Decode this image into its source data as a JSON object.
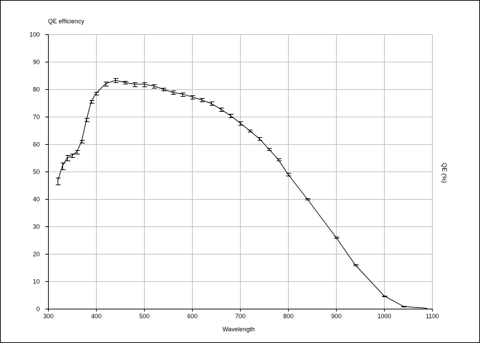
{
  "chart_data": {
    "type": "line",
    "title": "QE efficiency",
    "xlabel": "Wavelength",
    "ylabel": "QE (%)",
    "xlim": [
      300,
      1100
    ],
    "ylim": [
      0,
      100
    ],
    "grid": true,
    "x_ticks": [
      "300",
      "400",
      "500",
      "600",
      "700",
      "800",
      "900",
      "1000",
      "1100"
    ],
    "y_ticks": [
      "0",
      "10",
      "20",
      "30",
      "40",
      "50",
      "60",
      "70",
      "80",
      "90",
      "100"
    ],
    "series": [
      {
        "x": [
          320,
          330,
          340,
          350,
          360,
          370,
          380,
          390,
          400,
          420,
          440,
          460,
          480,
          500,
          520,
          540,
          560,
          580,
          600,
          620,
          640,
          660,
          680,
          700,
          720,
          740,
          760,
          780,
          800,
          840,
          900,
          940,
          1000,
          1040,
          1060,
          1080,
          1090
        ],
        "y": [
          46.5,
          52,
          55,
          55.8,
          57.2,
          61,
          68.8,
          75.5,
          78.5,
          82,
          83.2,
          82.5,
          81.8,
          81.8,
          81.2,
          80,
          78.8,
          78.2,
          77.2,
          76.1,
          74.8,
          72.7,
          70.4,
          67.7,
          64.9,
          62,
          58.2,
          54.3,
          49,
          40,
          26,
          16,
          4.7,
          0.9,
          0.5,
          0.3,
          0.1
        ],
        "err": [
          1.3,
          1.3,
          1.1,
          0.6,
          0.6,
          0.6,
          0.6,
          0.6,
          0.6,
          0.8,
          0.8,
          0.6,
          0.8,
          0.8,
          0.6,
          0.6,
          0.6,
          0.6,
          0.6,
          0.6,
          0.6,
          0.6,
          0.6,
          0.6,
          0.4,
          0.4,
          0.4,
          0.4,
          0.4,
          0.3,
          0.3,
          0.3,
          0.1,
          0.1,
          0,
          0,
          0
        ]
      }
    ]
  }
}
